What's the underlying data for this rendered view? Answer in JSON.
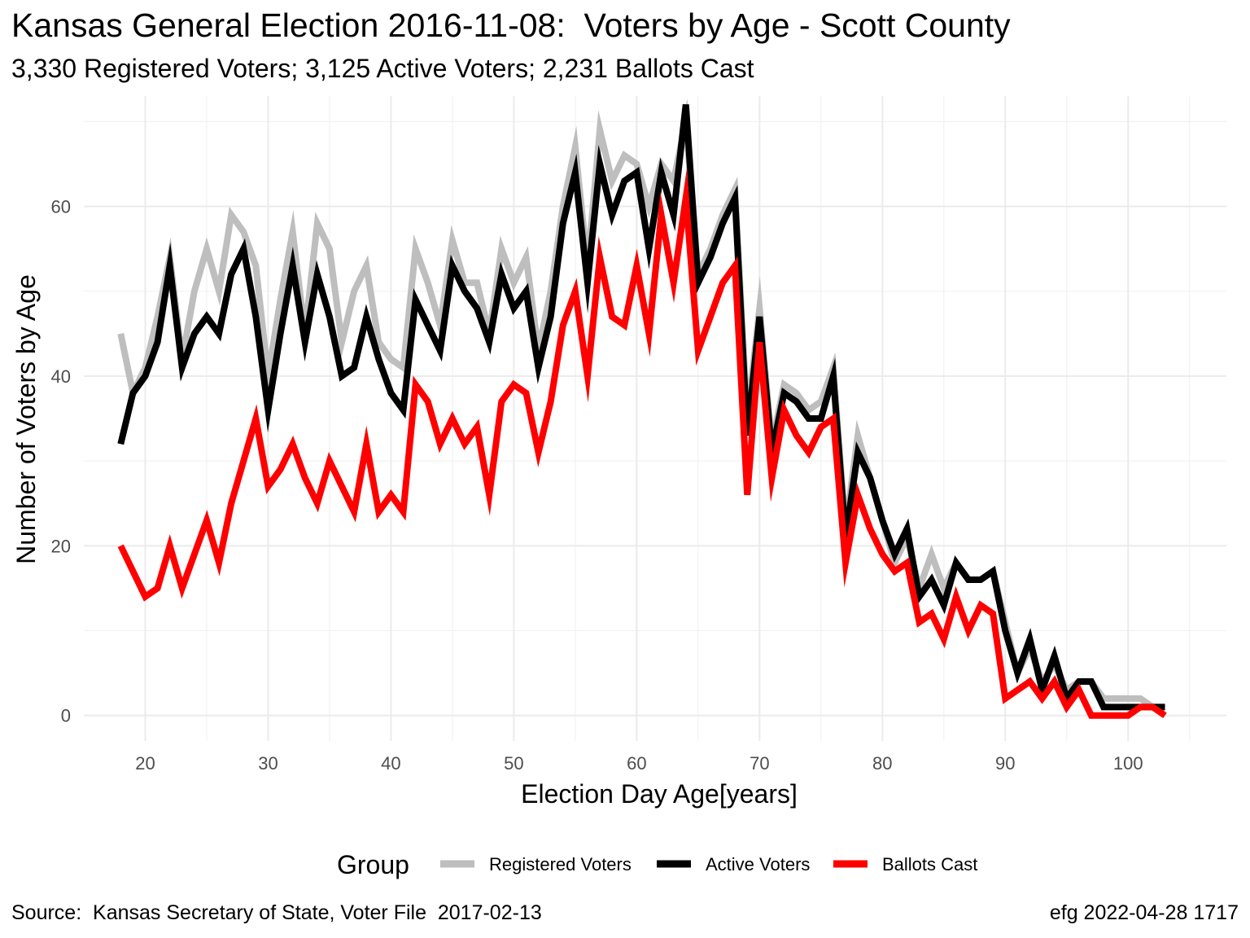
{
  "title": "Kansas General Election 2016-11-08:  Voters by Age - Scott County",
  "subtitle": "3,330 Registered Voters; 3,125 Active Voters; 2,231 Ballots Cast",
  "caption_left": "Source:  Kansas Secretary of State, Voter File  2017-02-13",
  "caption_right": "efg 2022-04-28 1717",
  "chart_data": {
    "type": "line",
    "xlabel": "Election Day Age[years]",
    "ylabel": "Number of Voters by Age",
    "xlim": [
      15,
      108
    ],
    "ylim": [
      -3,
      73
    ],
    "x_ticks": [
      20,
      30,
      40,
      50,
      60,
      70,
      80,
      90,
      100
    ],
    "y_ticks": [
      0,
      20,
      40,
      60
    ],
    "grid": true,
    "legend_title": "Group",
    "legend_position": "bottom",
    "x": [
      18,
      19,
      20,
      21,
      22,
      23,
      24,
      25,
      26,
      27,
      28,
      29,
      30,
      31,
      32,
      33,
      34,
      35,
      36,
      37,
      38,
      39,
      40,
      41,
      42,
      43,
      44,
      45,
      46,
      47,
      48,
      49,
      50,
      51,
      52,
      53,
      54,
      55,
      56,
      57,
      58,
      59,
      60,
      61,
      62,
      63,
      64,
      65,
      66,
      67,
      68,
      69,
      70,
      71,
      72,
      73,
      74,
      75,
      76,
      77,
      78,
      79,
      80,
      81,
      82,
      83,
      84,
      85,
      86,
      87,
      88,
      89,
      90,
      91,
      92,
      93,
      94,
      95,
      96,
      97,
      98,
      99,
      100,
      101,
      102,
      103
    ],
    "series": [
      {
        "name": "Registered Voters",
        "color": "#bebebe",
        "values": [
          45,
          38,
          41,
          47,
          54,
          42,
          50,
          55,
          50,
          59,
          57,
          53,
          40,
          49,
          57,
          45,
          58,
          55,
          44,
          50,
          53,
          44,
          42,
          41,
          55,
          51,
          46,
          56,
          51,
          51,
          45,
          55,
          51,
          54,
          43,
          50,
          60,
          67,
          53,
          69,
          63,
          66,
          65,
          60,
          65,
          63,
          70,
          52,
          55,
          59,
          62,
          35,
          48,
          32,
          39,
          38,
          36,
          37,
          41,
          22,
          33,
          28,
          23,
          18,
          21,
          15,
          19,
          15,
          18,
          16,
          16,
          17,
          11,
          5,
          8,
          4,
          6,
          3,
          4,
          4,
          2,
          2,
          2,
          2,
          1,
          1
        ]
      },
      {
        "name": "Active Voters",
        "color": "#000000",
        "values": [
          32,
          38,
          40,
          44,
          53,
          41,
          45,
          47,
          45,
          52,
          55,
          47,
          36,
          45,
          53,
          44,
          52,
          47,
          40,
          41,
          47,
          42,
          38,
          36,
          49,
          46,
          43,
          53,
          50,
          48,
          44,
          52,
          48,
          50,
          41,
          47,
          58,
          64,
          51,
          65,
          59,
          63,
          64,
          55,
          64,
          59,
          72,
          51,
          54,
          58,
          61,
          33,
          47,
          31,
          38,
          37,
          35,
          35,
          40,
          21,
          31,
          28,
          23,
          19,
          22,
          14,
          16,
          13,
          18,
          16,
          16,
          17,
          10,
          5,
          9,
          3,
          7,
          2,
          4,
          4,
          1,
          1,
          1,
          1,
          1,
          1
        ]
      },
      {
        "name": "Ballots Cast",
        "color": "#ff0000",
        "values": [
          20,
          17,
          14,
          15,
          20,
          15,
          19,
          23,
          18,
          25,
          30,
          35,
          27,
          29,
          32,
          28,
          25,
          30,
          27,
          24,
          32,
          24,
          26,
          24,
          39,
          37,
          32,
          35,
          32,
          34,
          26,
          37,
          39,
          38,
          31,
          37,
          46,
          50,
          40,
          54,
          47,
          46,
          53,
          45,
          59,
          51,
          61,
          43,
          47,
          51,
          53,
          26,
          44,
          28,
          36,
          33,
          31,
          34,
          35,
          18,
          26,
          22,
          19,
          17,
          18,
          11,
          12,
          9,
          14,
          10,
          13,
          12,
          2,
          3,
          4,
          2,
          4,
          1,
          3,
          0,
          0,
          0,
          0,
          1,
          1,
          0
        ]
      }
    ]
  }
}
